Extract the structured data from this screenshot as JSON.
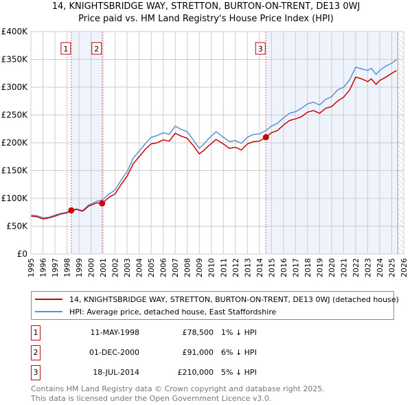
{
  "chart_data": {
    "type": "line",
    "title": "14, KNIGHTSBRIDGE WAY, STRETTON, BURTON-ON-TRENT, DE13 0WJ",
    "subtitle": "Price paid vs. HM Land Registry's House Price Index (HPI)",
    "xlim": [
      1995,
      2026
    ],
    "ylim": [
      0,
      400000
    ],
    "x_ticks": [
      "1995",
      "1996",
      "1997",
      "1998",
      "1999",
      "2000",
      "2001",
      "2002",
      "2003",
      "2004",
      "2005",
      "2006",
      "2007",
      "2008",
      "2009",
      "2010",
      "2011",
      "2012",
      "2013",
      "2014",
      "2015",
      "2016",
      "2017",
      "2018",
      "2019",
      "2020",
      "2021",
      "2022",
      "2023",
      "2024",
      "2025",
      "2026"
    ],
    "y_ticks": [
      {
        "v": 0,
        "label": "£0"
      },
      {
        "v": 50000,
        "label": "£50K"
      },
      {
        "v": 100000,
        "label": "£100K"
      },
      {
        "v": 150000,
        "label": "£150K"
      },
      {
        "v": 200000,
        "label": "£200K"
      },
      {
        "v": 250000,
        "label": "£250K"
      },
      {
        "v": 300000,
        "label": "£300K"
      },
      {
        "v": 350000,
        "label": "£350K"
      },
      {
        "v": 400000,
        "label": "£400K"
      }
    ],
    "grid": true,
    "series": [
      {
        "name": "14, KNIGHTSBRIDGE WAY, STRETTON, BURTON-ON-TRENT, DE13 0WJ (detached house)",
        "color": "#cc0000",
        "x": [
          1995,
          1995.5,
          1996,
          1996.5,
          1997,
          1997.5,
          1998,
          1998.36,
          1998.8,
          1999.3,
          1999.8,
          2000.5,
          2000.92,
          2001.5,
          2002,
          2002.5,
          2003,
          2003.5,
          2004,
          2004.5,
          2005,
          2005.5,
          2006,
          2006.5,
          2007,
          2007.5,
          2008,
          2008.5,
          2009,
          2009.3,
          2009.8,
          2010.4,
          2011,
          2011.5,
          2012,
          2012.5,
          2013,
          2013.5,
          2014,
          2014.54,
          2015,
          2015.5,
          2016,
          2016.5,
          2017,
          2017.5,
          2018,
          2018.5,
          2019,
          2019.5,
          2020,
          2020.5,
          2021,
          2021.5,
          2022,
          2022.5,
          2023,
          2023.3,
          2023.7,
          2024,
          2024.5,
          2025,
          2025.4
        ],
        "y": [
          68000,
          67000,
          63000,
          65000,
          68000,
          72000,
          74000,
          78500,
          80000,
          77000,
          86000,
          92000,
          91000,
          102000,
          108000,
          125000,
          140000,
          162000,
          175000,
          188000,
          198000,
          200000,
          205000,
          203000,
          217000,
          212000,
          208000,
          195000,
          180000,
          185000,
          195000,
          206000,
          198000,
          190000,
          192000,
          187000,
          198000,
          202000,
          203000,
          210000,
          218000,
          222000,
          232000,
          240000,
          243000,
          247000,
          255000,
          258000,
          253000,
          262000,
          265000,
          275000,
          282000,
          295000,
          318000,
          315000,
          310000,
          315000,
          305000,
          312000,
          318000,
          325000,
          330000
        ]
      },
      {
        "name": "HPI: Average price, detached house, East Staffordshire",
        "color": "#5b8fd4",
        "x": [
          1995,
          1995.5,
          1996,
          1996.5,
          1997,
          1997.5,
          1998,
          1998.36,
          1998.8,
          1999.3,
          1999.8,
          2000.5,
          2000.92,
          2001.5,
          2002,
          2002.5,
          2003,
          2003.5,
          2004,
          2004.5,
          2005,
          2005.5,
          2006,
          2006.5,
          2007,
          2007.5,
          2008,
          2008.5,
          2009,
          2009.3,
          2009.8,
          2010.4,
          2011,
          2011.5,
          2012,
          2012.5,
          2013,
          2013.5,
          2014,
          2014.54,
          2015,
          2015.5,
          2016,
          2016.5,
          2017,
          2017.5,
          2018,
          2018.5,
          2019,
          2019.5,
          2020,
          2020.5,
          2021,
          2021.5,
          2022,
          2022.5,
          2023,
          2023.3,
          2023.7,
          2024,
          2024.5,
          2025,
          2025.4
        ],
        "y": [
          70000,
          69000,
          65000,
          66000,
          70000,
          73000,
          75000,
          79000,
          81000,
          78000,
          88000,
          95000,
          97000,
          108000,
          115000,
          133000,
          148000,
          172000,
          185000,
          198000,
          210000,
          213000,
          218000,
          215000,
          230000,
          224000,
          220000,
          205000,
          190000,
          196000,
          208000,
          220000,
          210000,
          202000,
          204000,
          199000,
          210000,
          215000,
          216000,
          222000,
          230000,
          235000,
          245000,
          253000,
          256000,
          262000,
          270000,
          273000,
          268000,
          278000,
          283000,
          295000,
          300000,
          313000,
          336000,
          333000,
          330000,
          334000,
          323000,
          330000,
          338000,
          343000,
          350000
        ]
      }
    ],
    "transactions": [
      {
        "n": "1",
        "date": "11-MAY-1998",
        "x": 1998.36,
        "price": "£78,500",
        "value": 78500,
        "hpi": "1% ↓ HPI"
      },
      {
        "n": "2",
        "date": "01-DEC-2000",
        "x": 2000.92,
        "price": "£91,000",
        "value": 91000,
        "hpi": "6% ↓ HPI"
      },
      {
        "n": "3",
        "date": "18-JUL-2014",
        "x": 2014.54,
        "price": "£210,000",
        "value": 210000,
        "hpi": "5% ↓ HPI"
      }
    ],
    "shaded_ranges": [
      [
        1998.36,
        2000.92
      ],
      [
        2014.54,
        2025.5
      ]
    ],
    "hatched_from": 2025.5
  },
  "footer": {
    "line1": "Contains HM Land Registry data © Crown copyright and database right 2025.",
    "line2": "This data is licensed under the Open Government Licence v3.0."
  },
  "colors": {
    "red": "#cc0000",
    "blue": "#5b8fd4",
    "shade": "#eef3fc"
  }
}
